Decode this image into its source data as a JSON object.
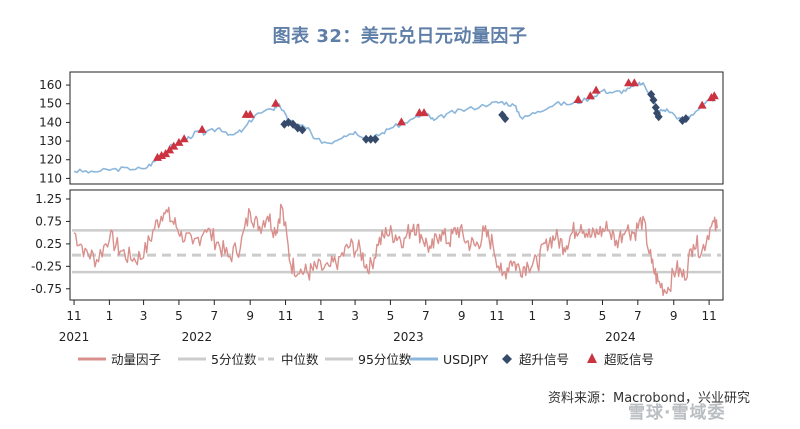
{
  "title": "图表 32：美元兑日元动量因子",
  "source": "资料来源：Macrobond，兴业研究",
  "watermark": "雪球·雪域委",
  "colors": {
    "momentum": "#d9908c",
    "pct_band": "#cccccc",
    "median": "#cccccc",
    "usdjpy": "#8cb7dc",
    "buy_signal": "#364a6b",
    "sell_signal": "#cc3340",
    "title": "#5f7fa8"
  },
  "chart_data": [
    {
      "type": "line",
      "panel": "top",
      "y_ticks": [
        "160",
        "150",
        "140",
        "130",
        "120",
        "110"
      ],
      "ylim": [
        107,
        167
      ],
      "series": [
        {
          "name": "USDJPY",
          "x": [
            "2021-11-01",
            "2021-12-01",
            "2022-01-01",
            "2022-02-01",
            "2022-03-01",
            "2022-03-20",
            "2022-04-05",
            "2022-04-20",
            "2022-05-10",
            "2022-06-01",
            "2022-06-15",
            "2022-07-10",
            "2022-08-01",
            "2022-08-20",
            "2022-09-10",
            "2022-10-10",
            "2022-10-21",
            "2022-11-05",
            "2022-11-20",
            "2022-12-10",
            "2022-12-20",
            "2023-01-16",
            "2023-02-10",
            "2023-03-01",
            "2023-03-24",
            "2023-04-10",
            "2023-05-01",
            "2023-05-30",
            "2023-06-30",
            "2023-07-15",
            "2023-08-10",
            "2023-09-10",
            "2023-10-20",
            "2023-11-10",
            "2023-12-01",
            "2023-12-15",
            "2024-01-10",
            "2024-02-10",
            "2024-03-10",
            "2024-04-10",
            "2024-05-01",
            "2024-05-20",
            "2024-06-10",
            "2024-06-30",
            "2024-07-10",
            "2024-07-25",
            "2024-08-05",
            "2024-08-20",
            "2024-09-16",
            "2024-10-01",
            "2024-10-25",
            "2024-11-10",
            "2024-11-15"
          ],
          "values": [
            114,
            113.5,
            114.5,
            115.5,
            115,
            119,
            123,
            128,
            130,
            135,
            134,
            137,
            133,
            136,
            144,
            147,
            150,
            141,
            139,
            137,
            131,
            129,
            133,
            135,
            131,
            133,
            137,
            140,
            145,
            141,
            145,
            147,
            150,
            151,
            149,
            142,
            146,
            150,
            150,
            153,
            157,
            156,
            157,
            160,
            161,
            154,
            146,
            147,
            141,
            144,
            150,
            153,
            154
          ]
        }
      ],
      "signals": {
        "buy_label": "超升信号",
        "sell_label": "超贬信号",
        "buy": [
          {
            "x": "2022-10-30",
            "y": 139
          },
          {
            "x": "2022-11-06",
            "y": 140
          },
          {
            "x": "2022-11-14",
            "y": 139
          },
          {
            "x": "2022-11-22",
            "y": 137
          },
          {
            "x": "2022-11-30",
            "y": 136
          },
          {
            "x": "2023-03-20",
            "y": 131
          },
          {
            "x": "2023-03-28",
            "y": 131
          },
          {
            "x": "2023-04-05",
            "y": 131
          },
          {
            "x": "2023-11-10",
            "y": 144
          },
          {
            "x": "2023-11-15",
            "y": 142
          },
          {
            "x": "2024-07-24",
            "y": 155
          },
          {
            "x": "2024-07-28",
            "y": 152
          },
          {
            "x": "2024-08-01",
            "y": 148
          },
          {
            "x": "2024-08-03",
            "y": 145
          },
          {
            "x": "2024-08-06",
            "y": 143
          },
          {
            "x": "2024-09-16",
            "y": 141
          },
          {
            "x": "2024-09-22",
            "y": 142
          }
        ],
        "sell": [
          {
            "x": "2022-03-25",
            "y": 121
          },
          {
            "x": "2022-04-01",
            "y": 122
          },
          {
            "x": "2022-04-08",
            "y": 123
          },
          {
            "x": "2022-04-15",
            "y": 125
          },
          {
            "x": "2022-04-22",
            "y": 127
          },
          {
            "x": "2022-05-01",
            "y": 129
          },
          {
            "x": "2022-05-10",
            "y": 131
          },
          {
            "x": "2022-06-10",
            "y": 136
          },
          {
            "x": "2022-08-25",
            "y": 144
          },
          {
            "x": "2022-09-01",
            "y": 144
          },
          {
            "x": "2022-10-15",
            "y": 150
          },
          {
            "x": "2023-05-20",
            "y": 140
          },
          {
            "x": "2023-06-20",
            "y": 145
          },
          {
            "x": "2023-06-28",
            "y": 145
          },
          {
            "x": "2024-03-20",
            "y": 152
          },
          {
            "x": "2024-04-10",
            "y": 154
          },
          {
            "x": "2024-04-20",
            "y": 157
          },
          {
            "x": "2024-06-15",
            "y": 161
          },
          {
            "x": "2024-06-25",
            "y": 161
          },
          {
            "x": "2024-10-20",
            "y": 149
          },
          {
            "x": "2024-11-05",
            "y": 153
          },
          {
            "x": "2024-11-10",
            "y": 154
          }
        ]
      }
    },
    {
      "type": "line",
      "panel": "bottom",
      "y_ticks": [
        "1.25",
        "0.75",
        "0.25",
        "-0.25",
        "-0.75"
      ],
      "ylim": [
        -1.0,
        1.45
      ],
      "series": [
        {
          "name": "动量因子",
          "x": [
            "2021-11-01",
            "2021-11-20",
            "2021-12-10",
            "2022-01-01",
            "2022-01-20",
            "2022-02-10",
            "2022-03-01",
            "2022-03-20",
            "2022-04-05",
            "2022-04-20",
            "2022-05-05",
            "2022-05-25",
            "2022-06-15",
            "2022-07-05",
            "2022-07-25",
            "2022-08-15",
            "2022-09-01",
            "2022-09-15",
            "2022-10-01",
            "2022-10-15",
            "2022-10-25",
            "2022-11-10",
            "2022-11-25",
            "2022-12-10",
            "2022-12-25",
            "2023-01-15",
            "2023-02-01",
            "2023-02-20",
            "2023-03-10",
            "2023-03-25",
            "2023-04-10",
            "2023-04-25",
            "2023-05-10",
            "2023-05-25",
            "2023-06-10",
            "2023-06-25",
            "2023-07-10",
            "2023-07-25",
            "2023-08-10",
            "2023-08-25",
            "2023-09-10",
            "2023-09-25",
            "2023-10-10",
            "2023-10-25",
            "2023-11-10",
            "2023-11-25",
            "2023-12-10",
            "2023-12-25",
            "2024-01-10",
            "2024-01-25",
            "2024-02-10",
            "2024-02-25",
            "2024-03-10",
            "2024-03-25",
            "2024-04-10",
            "2024-04-25",
            "2024-05-10",
            "2024-05-25",
            "2024-06-10",
            "2024-06-25",
            "2024-07-10",
            "2024-07-25",
            "2024-08-05",
            "2024-08-20",
            "2024-09-05",
            "2024-09-20",
            "2024-10-05",
            "2024-10-20",
            "2024-11-05",
            "2024-11-15"
          ],
          "values": [
            0.5,
            0.1,
            -0.1,
            0.4,
            0.1,
            -0.1,
            0.0,
            0.6,
            1.0,
            0.75,
            0.5,
            0.2,
            0.6,
            0.3,
            -0.05,
            0.2,
            1.0,
            0.6,
            0.9,
            0.5,
            1.1,
            -0.2,
            -0.35,
            -0.4,
            -0.3,
            -0.3,
            -0.1,
            0.2,
            0.1,
            -0.35,
            0.25,
            0.5,
            0.45,
            0.35,
            0.7,
            0.4,
            0.1,
            0.5,
            0.3,
            0.6,
            0.3,
            0.2,
            0.5,
            0.25,
            -0.5,
            -0.1,
            -0.3,
            -0.2,
            -0.2,
            0.3,
            0.4,
            0.2,
            0.5,
            0.7,
            0.4,
            0.5,
            0.6,
            0.3,
            0.6,
            0.5,
            0.8,
            -0.2,
            -0.6,
            -0.8,
            -0.3,
            -0.5,
            0.3,
            0.1,
            0.7,
            0.6
          ]
        },
        {
          "name": "5分位数",
          "constant": -0.38
        },
        {
          "name": "中位数",
          "constant": 0.0
        },
        {
          "name": "95分位数",
          "constant": 0.55
        }
      ]
    }
  ],
  "x_axis": {
    "tick_labels": [
      "11",
      "1",
      "3",
      "5",
      "7",
      "9",
      "11",
      "1",
      "3",
      "5",
      "7",
      "9",
      "11",
      "1",
      "3",
      "5",
      "7",
      "9",
      "11"
    ],
    "tick_dates": [
      "2021-11-01",
      "2022-01-01",
      "2022-03-01",
      "2022-05-01",
      "2022-07-01",
      "2022-09-01",
      "2022-11-01",
      "2023-01-01",
      "2023-03-01",
      "2023-05-01",
      "2023-07-01",
      "2023-09-01",
      "2023-11-01",
      "2024-01-01",
      "2024-03-01",
      "2024-05-01",
      "2024-07-01",
      "2024-09-01",
      "2024-11-01"
    ],
    "year_labels": [
      "2021",
      "2022",
      "2023",
      "2024"
    ],
    "year_dates": [
      "2021-11-01",
      "2022-06-01",
      "2023-06-01",
      "2024-06-01"
    ],
    "range": [
      "2021-10-25",
      "2024-11-25"
    ]
  },
  "legend": [
    {
      "label": "动量因子",
      "kind": "line",
      "color_key": "momentum"
    },
    {
      "label": "5分位数",
      "kind": "line",
      "color_key": "pct_band"
    },
    {
      "label": "中位数",
      "kind": "dash",
      "color_key": "median"
    },
    {
      "label": "95分位数",
      "kind": "line",
      "color_key": "pct_band"
    },
    {
      "label": "USDJPY",
      "kind": "line",
      "color_key": "usdjpy"
    },
    {
      "label": "超升信号",
      "kind": "diamond",
      "color_key": "buy_signal"
    },
    {
      "label": "超贬信号",
      "kind": "triangle",
      "color_key": "sell_signal"
    }
  ]
}
